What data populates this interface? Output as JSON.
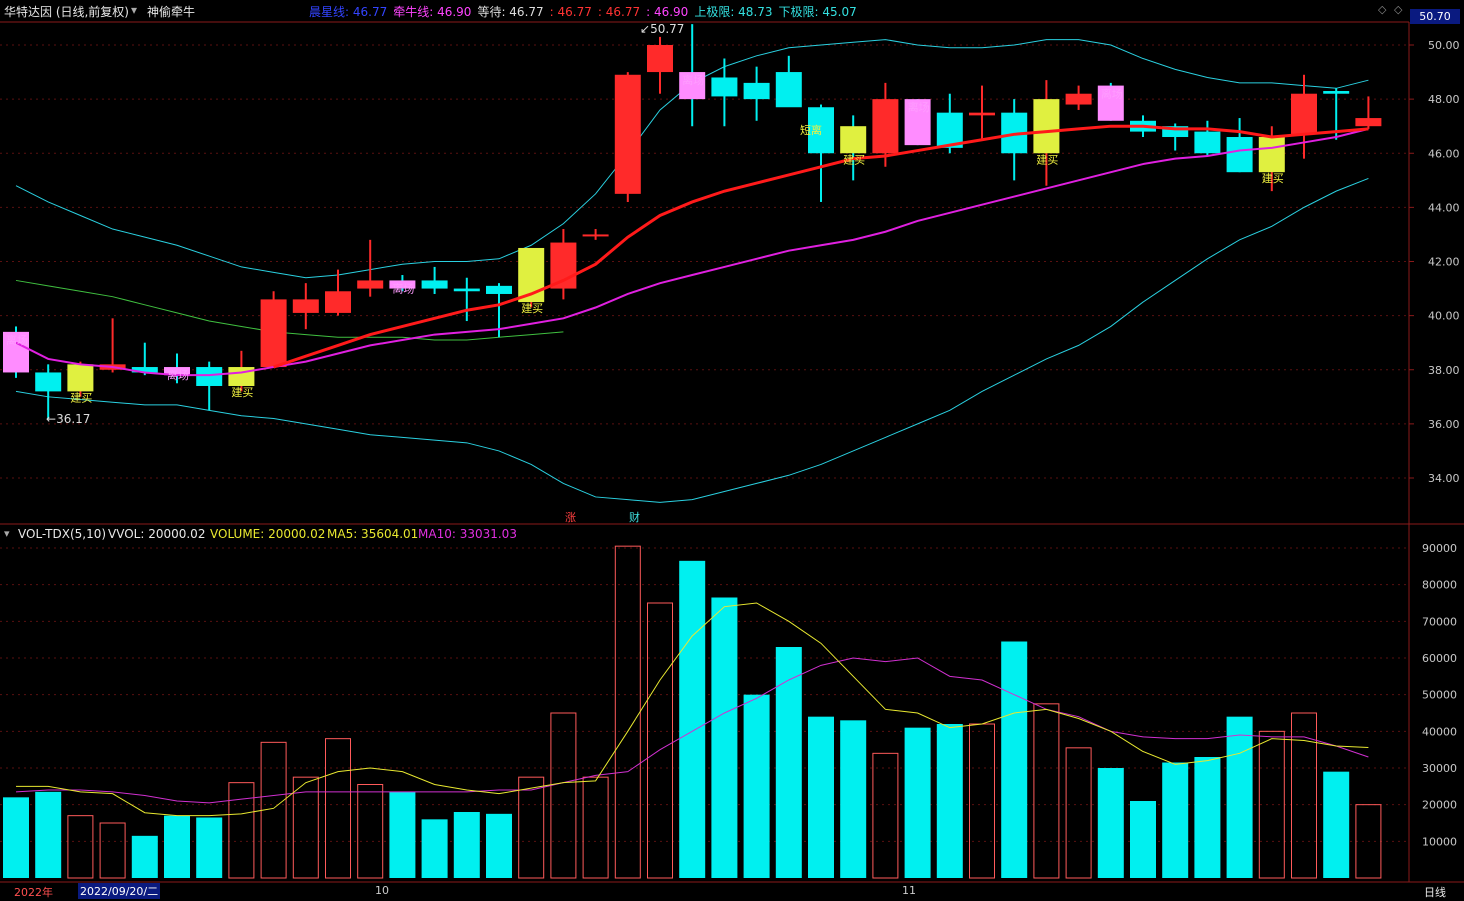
{
  "header": {
    "stock_title": "华特达因 (日线,前复权)",
    "indicator_name": "神偷牵牛",
    "ind_items": [
      {
        "label": "晨星线:",
        "value": "46.77",
        "color": "#3344ff"
      },
      {
        "label": "牵牛线:",
        "value": "46.90",
        "color": "#ff44ff"
      },
      {
        "label": "等待:",
        "value": "46.77",
        "color": "#dddddd"
      },
      {
        "label": ":",
        "value": "46.77",
        "color": "#ff3333"
      },
      {
        "label": ":",
        "value": "46.77",
        "color": "#ff3333"
      },
      {
        "label": ":",
        "value": "46.90",
        "color": "#ff44ff"
      },
      {
        "label": "上极限:",
        "value": "48.73",
        "color": "#33e0e0"
      },
      {
        "label": "下极限:",
        "value": "45.07",
        "color": "#33e0e0"
      }
    ],
    "price_box": "50.70"
  },
  "volume_header": {
    "name": "VOL-TDX(5,10)",
    "vvol": "VVOL: 20000.02",
    "volume": "VOLUME: 20000.02",
    "ma5": "MA5: 35604.01",
    "ma10": "MA10: 33031.03"
  },
  "colors": {
    "up": "#ff2a2a",
    "down": "#00f0f0",
    "ma_red": "#ff1a1a",
    "ma_magenta": "#e020e0",
    "band": "#2ad0e0",
    "ma_green": "#40c040",
    "vol_ma5": "#e8e830",
    "vol_ma10": "#d030d0"
  },
  "markers": {
    "high_label": "50.77",
    "low_label": "36.17",
    "zhang": "涨",
    "cai": "财",
    "signal_exit": "离场",
    "signal_buy": "建买",
    "signal_short": "短离"
  },
  "bottom_axis": {
    "year": "2022年",
    "date": "2022/09/20/二",
    "oct": "10",
    "nov": "11",
    "period": "日线"
  },
  "chart_data": {
    "type": "candlestick",
    "price_axis": {
      "ylim": [
        32.5,
        51.0
      ],
      "ticks": [
        "50.00",
        "48.00",
        "46.00",
        "44.00",
        "42.00",
        "40.00",
        "38.00",
        "36.00",
        "34.00"
      ]
    },
    "volume_axis": {
      "ylim": [
        0,
        93000
      ],
      "ticks": [
        "90000",
        "80000",
        "70000",
        "60000",
        "50000",
        "40000",
        "30000",
        "20000",
        "10000"
      ]
    },
    "candles": [
      {
        "o": 39.4,
        "h": 39.6,
        "l": 37.7,
        "c": 37.9,
        "v": 22000,
        "tint": "pink"
      },
      {
        "o": 37.9,
        "h": 38.2,
        "l": 36.17,
        "c": 37.2,
        "v": 23500,
        "tint": ""
      },
      {
        "o": 37.2,
        "h": 38.3,
        "l": 37.0,
        "c": 38.2,
        "v": 17000,
        "tint": "yellow"
      },
      {
        "o": 38.0,
        "h": 39.9,
        "l": 37.9,
        "c": 38.2,
        "v": 15000,
        "tint": ""
      },
      {
        "o": 38.1,
        "h": 39.0,
        "l": 37.8,
        "c": 37.9,
        "v": 11500,
        "tint": ""
      },
      {
        "o": 38.1,
        "h": 38.6,
        "l": 37.5,
        "c": 37.8,
        "v": 17000,
        "tint": "pink"
      },
      {
        "o": 38.1,
        "h": 38.3,
        "l": 36.5,
        "c": 37.4,
        "v": 16500,
        "tint": ""
      },
      {
        "o": 37.4,
        "h": 38.7,
        "l": 37.2,
        "c": 38.1,
        "v": 26000,
        "tint": "yellow"
      },
      {
        "o": 38.1,
        "h": 40.9,
        "l": 38.1,
        "c": 40.6,
        "v": 37000,
        "tint": ""
      },
      {
        "o": 40.1,
        "h": 41.2,
        "l": 39.5,
        "c": 40.6,
        "v": 27500,
        "tint": ""
      },
      {
        "o": 40.1,
        "h": 41.7,
        "l": 40.0,
        "c": 40.9,
        "v": 38000,
        "tint": ""
      },
      {
        "o": 41.0,
        "h": 42.8,
        "l": 40.7,
        "c": 41.3,
        "v": 25500,
        "tint": ""
      },
      {
        "o": 41.3,
        "h": 41.5,
        "l": 40.9,
        "c": 41.0,
        "v": 23500,
        "tint": "pink"
      },
      {
        "o": 41.3,
        "h": 41.8,
        "l": 40.8,
        "c": 41.0,
        "v": 16000,
        "tint": ""
      },
      {
        "o": 41.0,
        "h": 41.4,
        "l": 39.8,
        "c": 40.9,
        "v": 18000,
        "tint": ""
      },
      {
        "o": 41.1,
        "h": 41.2,
        "l": 39.2,
        "c": 40.8,
        "v": 17500,
        "tint": ""
      },
      {
        "o": 40.5,
        "h": 42.5,
        "l": 40.3,
        "c": 42.5,
        "v": 27500,
        "tint": "yellow"
      },
      {
        "o": 41.0,
        "h": 43.2,
        "l": 40.6,
        "c": 42.7,
        "v": 45000,
        "tint": ""
      },
      {
        "o": 43.0,
        "h": 43.2,
        "l": 42.8,
        "c": 43.0,
        "v": 27500,
        "tint": ""
      },
      {
        "o": 44.5,
        "h": 49.0,
        "l": 44.2,
        "c": 48.9,
        "v": 90500,
        "tint": ""
      },
      {
        "o": 49.0,
        "h": 50.3,
        "l": 48.2,
        "c": 50.0,
        "v": 75000,
        "tint": ""
      },
      {
        "o": 49.0,
        "h": 50.77,
        "l": 47.0,
        "c": 48.0,
        "v": 86500,
        "tint": "pink"
      },
      {
        "o": 48.8,
        "h": 49.5,
        "l": 47.0,
        "c": 48.1,
        "v": 76500,
        "tint": ""
      },
      {
        "o": 48.6,
        "h": 49.2,
        "l": 47.2,
        "c": 48.0,
        "v": 50000,
        "tint": ""
      },
      {
        "o": 49.0,
        "h": 49.6,
        "l": 47.8,
        "c": 47.7,
        "v": 63000,
        "tint": ""
      },
      {
        "o": 47.7,
        "h": 47.8,
        "l": 44.2,
        "c": 46.0,
        "v": 44000,
        "tint": ""
      },
      {
        "o": 47.0,
        "h": 47.4,
        "l": 45.0,
        "c": 46.0,
        "v": 43000,
        "tint": "yellow"
      },
      {
        "o": 46.0,
        "h": 48.6,
        "l": 45.5,
        "c": 48.0,
        "v": 34000,
        "tint": ""
      },
      {
        "o": 48.0,
        "h": 48.0,
        "l": 46.3,
        "c": 46.3,
        "v": 41000,
        "tint": "pink"
      },
      {
        "o": 47.5,
        "h": 48.2,
        "l": 46.0,
        "c": 46.2,
        "v": 42000,
        "tint": ""
      },
      {
        "o": 47.4,
        "h": 48.5,
        "l": 46.5,
        "c": 47.5,
        "v": 42000,
        "tint": ""
      },
      {
        "o": 47.5,
        "h": 48.0,
        "l": 45.0,
        "c": 46.0,
        "v": 64500,
        "tint": ""
      },
      {
        "o": 46.0,
        "h": 48.7,
        "l": 44.8,
        "c": 48.0,
        "v": 47500,
        "tint": "yellow"
      },
      {
        "o": 47.8,
        "h": 48.5,
        "l": 47.6,
        "c": 48.2,
        "v": 35500,
        "tint": ""
      },
      {
        "o": 48.5,
        "h": 48.6,
        "l": 47.2,
        "c": 47.2,
        "v": 30000,
        "tint": "pink"
      },
      {
        "o": 47.2,
        "h": 47.4,
        "l": 46.6,
        "c": 46.8,
        "v": 21000,
        "tint": ""
      },
      {
        "o": 47.0,
        "h": 47.1,
        "l": 46.1,
        "c": 46.6,
        "v": 31500,
        "tint": ""
      },
      {
        "o": 46.8,
        "h": 47.2,
        "l": 45.9,
        "c": 46.0,
        "v": 33000,
        "tint": ""
      },
      {
        "o": 46.6,
        "h": 47.3,
        "l": 45.3,
        "c": 45.3,
        "v": 44000,
        "tint": ""
      },
      {
        "o": 45.3,
        "h": 47.0,
        "l": 44.6,
        "c": 46.6,
        "v": 40000,
        "tint": "yellow"
      },
      {
        "o": 46.7,
        "h": 48.9,
        "l": 45.8,
        "c": 48.2,
        "v": 45000,
        "tint": ""
      },
      {
        "o": 48.3,
        "h": 48.4,
        "l": 46.5,
        "c": 48.2,
        "v": 29000,
        "tint": ""
      },
      {
        "o": 47.0,
        "h": 48.1,
        "l": 46.9,
        "c": 47.3,
        "v": 20000,
        "tint": ""
      }
    ],
    "vol_ma5": [
      25000,
      25000,
      23500,
      23000,
      17800,
      17000,
      17000,
      17500,
      19000,
      26000,
      29000,
      30000,
      29000,
      25500,
      24000,
      23000,
      24500,
      26000,
      26500,
      40000,
      54000,
      66000,
      74000,
      75000,
      70000,
      64000,
      55000,
      46000,
      45000,
      41000,
      42000,
      45000,
      46000,
      43500,
      40000,
      34500,
      31000,
      32000,
      34000,
      38000,
      37500,
      36000,
      35600
    ],
    "vol_ma10": [
      23500,
      24000,
      24000,
      23500,
      22500,
      21000,
      20500,
      21500,
      22500,
      23500,
      23500,
      23500,
      23500,
      23500,
      23500,
      24000,
      24000,
      26000,
      28000,
      29000,
      35000,
      40000,
      45000,
      49000,
      54000,
      58000,
      60000,
      59000,
      60000,
      55000,
      54000,
      50000,
      46000,
      44000,
      40000,
      38500,
      38000,
      38000,
      39000,
      38500,
      38500,
      36000,
      33000
    ],
    "ma_red": [
      null,
      null,
      null,
      null,
      null,
      null,
      null,
      null,
      38.1,
      38.5,
      38.9,
      39.3,
      39.6,
      39.9,
      40.2,
      40.4,
      40.8,
      41.3,
      41.9,
      42.9,
      43.7,
      44.2,
      44.6,
      44.9,
      45.2,
      45.5,
      45.8,
      45.9,
      46.1,
      46.3,
      46.5,
      46.7,
      46.8,
      46.9,
      47.0,
      47.0,
      46.9,
      46.9,
      46.8,
      46.6,
      46.7,
      46.8,
      46.9
    ],
    "ma_magenta": [
      39.0,
      38.4,
      38.2,
      38.1,
      37.9,
      37.8,
      37.8,
      37.9,
      38.1,
      38.3,
      38.6,
      38.9,
      39.1,
      39.3,
      39.4,
      39.5,
      39.7,
      39.9,
      40.3,
      40.8,
      41.2,
      41.5,
      41.8,
      42.1,
      42.4,
      42.6,
      42.8,
      43.1,
      43.5,
      43.8,
      44.1,
      44.4,
      44.7,
      45.0,
      45.3,
      45.6,
      45.8,
      45.9,
      46.1,
      46.2,
      46.4,
      46.6,
      46.9
    ],
    "ma_green": [
      41.3,
      41.1,
      40.9,
      40.7,
      40.4,
      40.1,
      39.8,
      39.6,
      39.4,
      39.3,
      39.2,
      39.2,
      39.2,
      39.1,
      39.1,
      39.2,
      39.3,
      39.4
    ],
    "band_upper": [
      44.8,
      44.2,
      43.7,
      43.2,
      42.9,
      42.6,
      42.2,
      41.8,
      41.6,
      41.4,
      41.5,
      41.7,
      41.9,
      42.0,
      42.0,
      42.1,
      42.6,
      43.4,
      44.5,
      46.0,
      47.6,
      48.6,
      49.2,
      49.6,
      49.9,
      50.0,
      50.1,
      50.2,
      50.0,
      49.9,
      49.9,
      50.0,
      50.2,
      50.2,
      50.0,
      49.5,
      49.1,
      48.8,
      48.6,
      48.6,
      48.5,
      48.4,
      48.7
    ],
    "band_lower": [
      37.2,
      37.0,
      36.9,
      36.8,
      36.7,
      36.7,
      36.5,
      36.3,
      36.2,
      36.0,
      35.8,
      35.6,
      35.5,
      35.4,
      35.3,
      35.0,
      34.5,
      33.8,
      33.3,
      33.2,
      33.1,
      33.2,
      33.5,
      33.8,
      34.1,
      34.5,
      35.0,
      35.5,
      36.0,
      36.5,
      37.2,
      37.8,
      38.4,
      38.9,
      39.6,
      40.5,
      41.3,
      42.1,
      42.8,
      43.3,
      44.0,
      44.6,
      45.07
    ]
  }
}
